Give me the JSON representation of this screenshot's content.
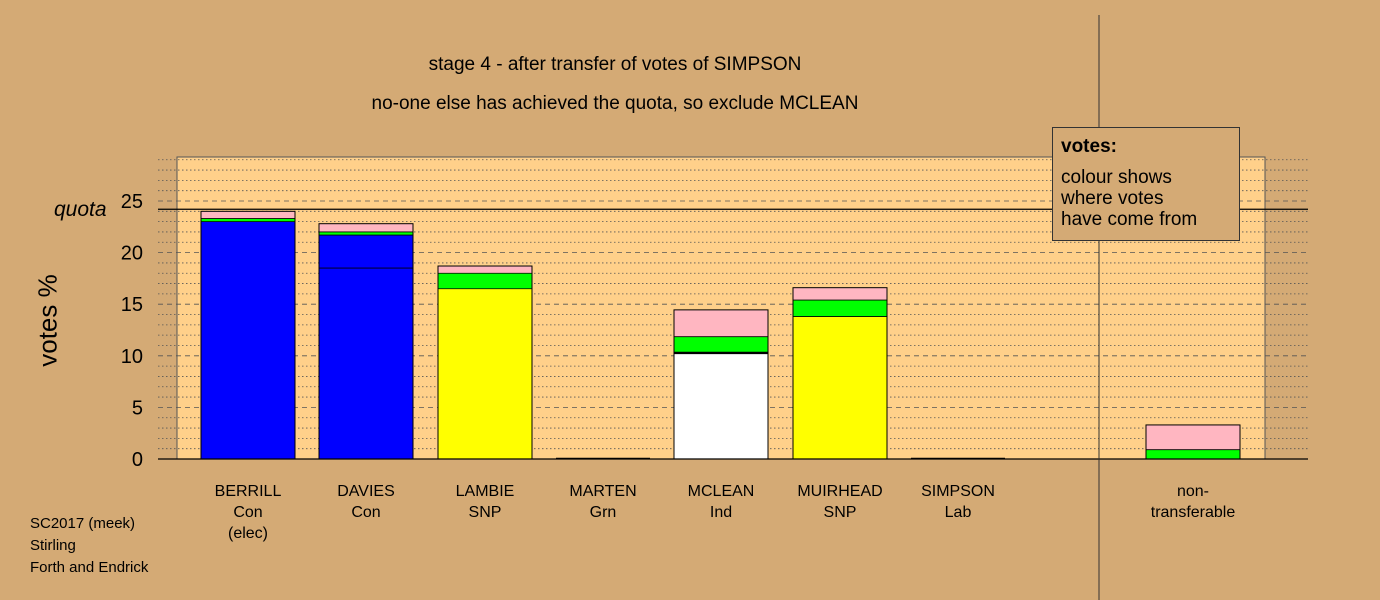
{
  "title_line1": "stage 4 - after transfer of votes of SIMPSON",
  "title_line2": "no-one else has achieved the quota, so exclude MCLEAN",
  "legend": {
    "title": "votes:",
    "lines": [
      "colour shows",
      "where votes",
      "have come from"
    ]
  },
  "footer": [
    "SC2017 (meek)",
    "Stirling",
    "Forth and Endrick"
  ],
  "colors": {
    "background": "#d4aa75",
    "plot_area": "#ffd08a",
    "Con": "#0000ff",
    "SNP": "#ffff00",
    "Ind": "#ffffff",
    "Grn": "#00ff00",
    "Lab": "#ffb6c1"
  },
  "chart_data": {
    "type": "bar",
    "stacked": true,
    "ylabel": "votes %",
    "ylim": [
      0,
      29
    ],
    "yticks": [
      0,
      5,
      10,
      15,
      20,
      25
    ],
    "quota": 24.2,
    "quota_label": "quota",
    "grid": "dashed every 5, dotted every 1",
    "categories": [
      {
        "name": "BERRILL",
        "party": "Con",
        "note": "(elec)"
      },
      {
        "name": "DAVIES",
        "party": "Con",
        "note": ""
      },
      {
        "name": "LAMBIE",
        "party": "SNP",
        "note": ""
      },
      {
        "name": "MARTEN",
        "party": "Grn",
        "note": ""
      },
      {
        "name": "MCLEAN",
        "party": "Ind",
        "note": ""
      },
      {
        "name": "MUIRHEAD",
        "party": "SNP",
        "note": ""
      },
      {
        "name": "SIMPSON",
        "party": "Lab",
        "note": ""
      },
      {
        "name": "non-",
        "party": "transferable",
        "note": ""
      }
    ],
    "segments": [
      [
        {
          "color": "#0000ff",
          "value": 23.0
        },
        {
          "color": "#00ff00",
          "value": 0.3
        },
        {
          "color": "#ffb6c1",
          "value": 0.7
        }
      ],
      [
        {
          "color": "#0000ff",
          "value": 18.5
        },
        {
          "color": "#0000ff",
          "value": 3.2
        },
        {
          "color": "#00ff00",
          "value": 0.3
        },
        {
          "color": "#ffb6c1",
          "value": 0.8
        }
      ],
      [
        {
          "color": "#ffff00",
          "value": 16.5
        },
        {
          "color": "#00ff00",
          "value": 1.5
        },
        {
          "color": "#ffb6c1",
          "value": 0.7
        }
      ],
      [],
      [
        {
          "color": "#ffffff",
          "value": 10.2
        },
        {
          "color": "#000000",
          "value": 0.15
        },
        {
          "color": "#00ff00",
          "value": 1.5
        },
        {
          "color": "#ffb6c1",
          "value": 2.6
        }
      ],
      [
        {
          "color": "#ffff00",
          "value": 13.8
        },
        {
          "color": "#00ff00",
          "value": 1.6
        },
        {
          "color": "#ffb6c1",
          "value": 1.2
        }
      ],
      [],
      [
        {
          "color": "#00ff00",
          "value": 0.9
        },
        {
          "color": "#ffb6c1",
          "value": 2.4
        }
      ]
    ]
  }
}
